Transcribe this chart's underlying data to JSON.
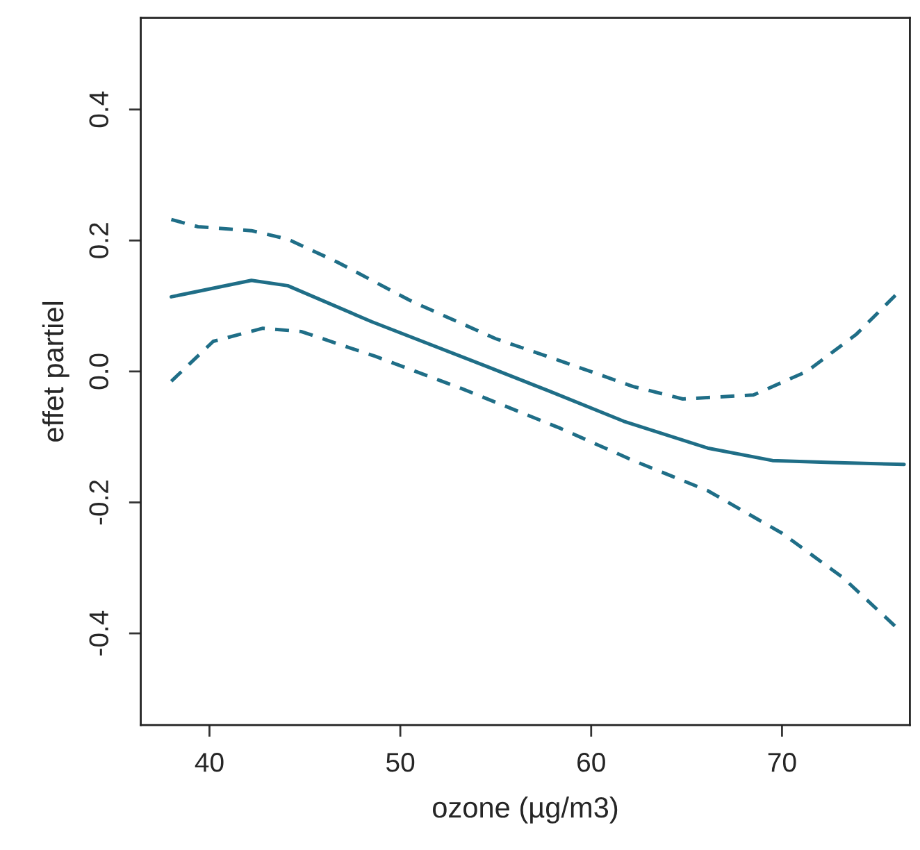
{
  "chart_data": {
    "type": "line",
    "xlabel": "ozone (µg/m3)",
    "ylabel": "effet partiel",
    "xlim": [
      36.4,
      76.7
    ],
    "ylim": [
      -0.54,
      0.54
    ],
    "xticks": [
      40,
      50,
      60,
      70
    ],
    "yticks": [
      {
        "value": -0.4,
        "label": "-0.4"
      },
      {
        "value": -0.2,
        "label": "-0.2"
      },
      {
        "value": 0,
        "label": "0.0"
      },
      {
        "value": 0.2,
        "label": "0.2"
      },
      {
        "value": 0.4,
        "label": "0.4"
      }
    ],
    "grid": false,
    "legend": false,
    "series": [
      {
        "color": "#1f6e87",
        "line_style": "solid",
        "x": [
          38.0,
          42.2,
          44.1,
          48.5,
          54.5,
          57.8,
          61.7,
          66.1,
          69.5,
          72.6,
          76.4
        ],
        "values": [
          0.114,
          0.139,
          0.131,
          0.076,
          0.008,
          -0.03,
          -0.076,
          -0.117,
          -0.136,
          -0.139,
          -0.142
        ]
      },
      {
        "color": "#1f6e87",
        "line_style": "dashed",
        "x": [
          38.0,
          39.4,
          42.2,
          44.1,
          46.7,
          50.6,
          55.0,
          58.4,
          62.2,
          64.8,
          68.5,
          71.3,
          73.9,
          76.0
        ],
        "values": [
          0.232,
          0.221,
          0.215,
          0.202,
          0.167,
          0.107,
          0.05,
          0.016,
          -0.023,
          -0.042,
          -0.036,
          0.0,
          0.057,
          0.118
        ]
      },
      {
        "color": "#1f6e87",
        "line_style": "dashed",
        "x": [
          38.0,
          40.2,
          42.8,
          44.8,
          48.7,
          53.2,
          58.4,
          62.2,
          66.1,
          70.0,
          73.2,
          76.0
        ],
        "values": [
          -0.015,
          0.046,
          0.066,
          0.061,
          0.023,
          -0.026,
          -0.087,
          -0.136,
          -0.182,
          -0.247,
          -0.315,
          -0.391
        ]
      }
    ]
  }
}
